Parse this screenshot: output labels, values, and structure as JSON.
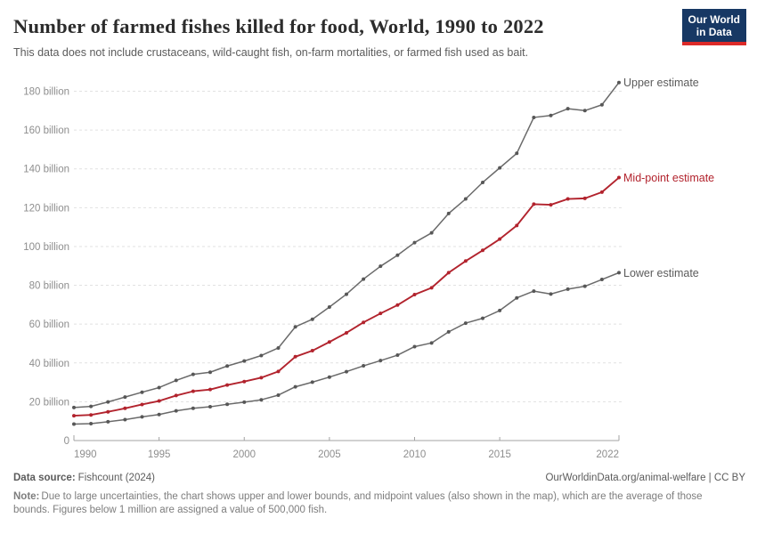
{
  "header": {
    "title": "Number of farmed fishes killed for food, World, 1990 to 2022",
    "subtitle": "This data does not include crustaceans, wild-caught fish, on-farm mortalities, or farmed fish used as bait.",
    "logo": {
      "line1": "Our World",
      "line2": "in Data",
      "bg_color": "#173864",
      "bar_color": "#dc2a28"
    }
  },
  "chart_data": {
    "type": "line",
    "title": "Number of farmed fishes killed for food, World, 1990 to 2022",
    "xlabel": "",
    "ylabel": "",
    "ylim": [
      0,
      180
    ],
    "y_unit_suffix": " billion",
    "y_ticks": [
      0,
      20,
      40,
      60,
      80,
      100,
      120,
      140,
      160,
      180
    ],
    "x_ticks": [
      1990,
      1995,
      2000,
      2005,
      2010,
      2015,
      2022
    ],
    "grid": "dashed-horizontal",
    "legend_position": "right-end-labels",
    "years": [
      1990,
      1991,
      1992,
      1993,
      1994,
      1995,
      1996,
      1997,
      1998,
      1999,
      2000,
      2001,
      2002,
      2003,
      2004,
      2005,
      2006,
      2007,
      2008,
      2009,
      2010,
      2011,
      2012,
      2013,
      2014,
      2015,
      2016,
      2017,
      2018,
      2019,
      2020,
      2021,
      2022
    ],
    "series": [
      {
        "name": "Upper estimate",
        "color": "#6a6a6a",
        "marker_color": "#575757",
        "label_color": "#5b5b5b",
        "line_width": 1.5,
        "values": [
          17.0,
          17.6,
          19.9,
          22.4,
          24.9,
          27.3,
          31.0,
          34.1,
          35.2,
          38.4,
          41.0,
          43.8,
          47.7,
          58.6,
          62.5,
          68.8,
          75.4,
          83.2,
          89.8,
          95.5,
          102.0,
          107.0,
          117.0,
          124.5,
          133.0,
          140.5,
          148.0,
          166.5,
          167.5,
          171.0,
          170.0,
          173.0,
          184.5
        ]
      },
      {
        "name": "Lower estimate",
        "color": "#6a6a6a",
        "marker_color": "#575757",
        "label_color": "#5b5b5b",
        "line_width": 1.5,
        "values": [
          8.5,
          8.7,
          9.7,
          10.8,
          12.2,
          13.4,
          15.3,
          16.6,
          17.4,
          18.7,
          19.8,
          21.0,
          23.4,
          27.7,
          30.1,
          32.7,
          35.5,
          38.5,
          41.2,
          44.0,
          48.4,
          50.3,
          56.0,
          60.5,
          63.0,
          67.0,
          73.5,
          77.0,
          75.5,
          78.0,
          79.5,
          83.0,
          86.5
        ]
      },
      {
        "name": "Mid-point estimate",
        "color": "#b2232d",
        "marker_color": "#b2232d",
        "label_color": "#b2232d",
        "line_width": 1.9,
        "values": [
          12.8,
          13.2,
          14.8,
          16.6,
          18.6,
          20.4,
          23.2,
          25.4,
          26.3,
          28.6,
          30.4,
          32.4,
          35.6,
          43.2,
          46.3,
          50.8,
          55.5,
          60.9,
          65.5,
          69.8,
          75.2,
          78.7,
          86.5,
          92.5,
          98.0,
          103.8,
          110.8,
          121.8,
          121.5,
          124.5,
          124.8,
          128.0,
          135.5
        ]
      }
    ],
    "colors": {
      "grid": "#e1e1e1",
      "axis": "#a3a3a3",
      "tick_text": "#8e8e8e"
    }
  },
  "footer": {
    "source_label": "Data source:",
    "source_value": "Fishcount (2024)",
    "attribution": "OurWorldinData.org/animal-welfare | CC BY",
    "note_label": "Note:",
    "note_text": "Due to large uncertainties, the chart shows upper and lower bounds, and midpoint values (also shown in the map), which are the average of those bounds. Figures below 1 million are assigned a value of 500,000 fish."
  }
}
